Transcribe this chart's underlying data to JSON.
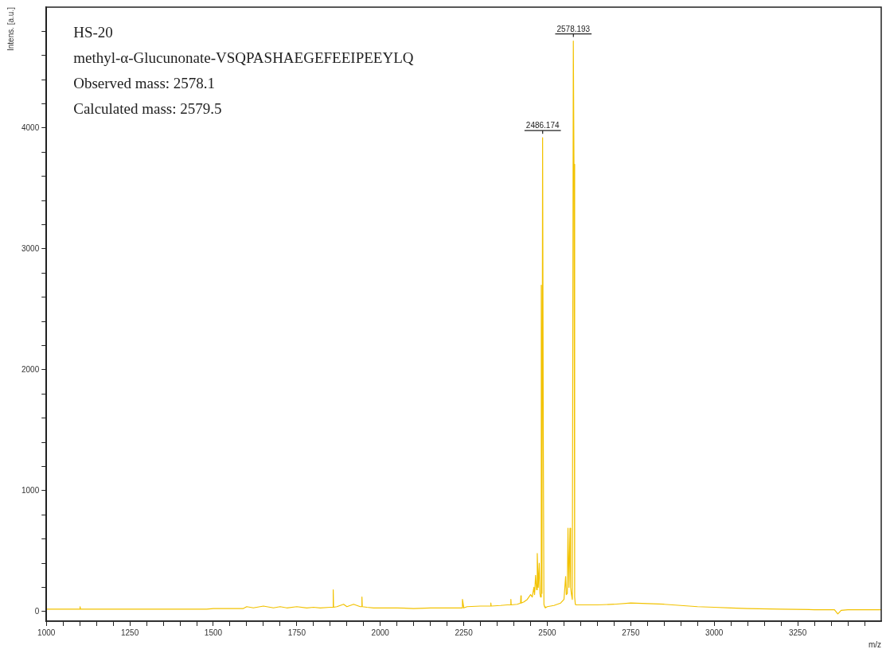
{
  "chart_data": {
    "type": "line",
    "xlabel": "m/z",
    "ylabel": "Intens. [a.u.]",
    "annotations": [
      "HS-20",
      "methyl-α-Glucunonate-VSQPASHAEGEFEEIPEEYLQ",
      "Observed mass: 2578.1",
      "Calculated mass: 2579.5",
      {
        "text": "2486.174",
        "x": 2486.174,
        "y": 3920
      },
      {
        "text": "2578.193",
        "x": 2578.193,
        "y": 4720
      }
    ],
    "xlim": [
      1000,
      3500
    ],
    "ylim": [
      -80,
      5000
    ],
    "xticks": [
      1000,
      {
        "value": 1050,
        "label": null
      },
      {
        "value": 1100,
        "label": null
      },
      {
        "value": 1150,
        "label": null
      },
      {
        "value": 1200,
        "label": null
      },
      1250,
      {
        "value": 1300,
        "label": null
      },
      {
        "value": 1350,
        "label": null
      },
      {
        "value": 1400,
        "label": null
      },
      {
        "value": 1450,
        "label": null
      },
      1500,
      {
        "value": 1550,
        "label": null
      },
      {
        "value": 1600,
        "label": null
      },
      {
        "value": 1650,
        "label": null
      },
      {
        "value": 1700,
        "label": null
      },
      1750,
      {
        "value": 1800,
        "label": null
      },
      {
        "value": 1850,
        "label": null
      },
      {
        "value": 1900,
        "label": null
      },
      {
        "value": 1950,
        "label": null
      },
      2000,
      {
        "value": 2050,
        "label": null
      },
      {
        "value": 2100,
        "label": null
      },
      {
        "value": 2150,
        "label": null
      },
      {
        "value": 2200,
        "label": null
      },
      2250,
      {
        "value": 2300,
        "label": null
      },
      {
        "value": 2350,
        "label": null
      },
      {
        "value": 2400,
        "label": null
      },
      {
        "value": 2450,
        "label": null
      },
      2500,
      {
        "value": 2550,
        "label": null
      },
      {
        "value": 2600,
        "label": null
      },
      {
        "value": 2650,
        "label": null
      },
      {
        "value": 2700,
        "label": null
      },
      2750,
      {
        "value": 2800,
        "label": null
      },
      {
        "value": 2850,
        "label": null
      },
      {
        "value": 2900,
        "label": null
      },
      {
        "value": 2950,
        "label": null
      },
      3000,
      {
        "value": 3050,
        "label": null
      },
      {
        "value": 3100,
        "label": null
      },
      {
        "value": 3150,
        "label": null
      },
      {
        "value": 3200,
        "label": null
      },
      3250,
      {
        "value": 3300,
        "label": null
      },
      {
        "value": 3350,
        "label": null
      },
      {
        "value": 3400,
        "label": null
      },
      {
        "value": 3450,
        "label": null
      }
    ],
    "yticks": [
      0,
      {
        "value": 200,
        "label": null
      },
      {
        "value": 400,
        "label": null
      },
      {
        "value": 600,
        "label": null
      },
      {
        "value": 800,
        "label": null
      },
      1000,
      {
        "value": 1200,
        "label": null
      },
      {
        "value": 1400,
        "label": null
      },
      {
        "value": 1600,
        "label": null
      },
      {
        "value": 1800,
        "label": null
      },
      2000,
      {
        "value": 2200,
        "label": null
      },
      {
        "value": 2400,
        "label": null
      },
      {
        "value": 2600,
        "label": null
      },
      {
        "value": 2800,
        "label": null
      },
      3000,
      {
        "value": 3200,
        "label": null
      },
      {
        "value": 3400,
        "label": null
      },
      {
        "value": 3600,
        "label": null
      },
      {
        "value": 3800,
        "label": null
      },
      4000,
      {
        "value": 4200,
        "label": null
      },
      {
        "value": 4400,
        "label": null
      },
      {
        "value": 4600,
        "label": null
      },
      {
        "value": 4800,
        "label": null
      }
    ],
    "grid": false,
    "legend": false,
    "marker": "none",
    "line_style": "solid",
    "series": [
      {
        "color": "#f2c200",
        "x": [
          1000,
          1100,
          1101,
          1102,
          1200,
          1480,
          1500,
          1590,
          1600,
          1620,
          1650,
          1680,
          1700,
          1720,
          1750,
          1780,
          1800,
          1820,
          1850,
          1858,
          1859,
          1860,
          1870,
          1890,
          1900,
          1920,
          1940,
          1944,
          1945,
          1946,
          1960,
          1980,
          2000,
          2050,
          2100,
          2150,
          2200,
          2240,
          2245,
          2246,
          2250,
          2260,
          2300,
          2330,
          2331,
          2332,
          2360,
          2380,
          2390,
          2391,
          2392,
          2410,
          2420,
          2421,
          2422,
          2430,
          2440,
          2450,
          2455,
          2460,
          2462,
          2465,
          2468,
          2470,
          2473,
          2476,
          2478,
          2480,
          2482,
          2484,
          2486,
          2488,
          2490,
          2492,
          2494,
          2500,
          2510,
          2520,
          2530,
          2540,
          2550,
          2555,
          2557,
          2560,
          2562,
          2565,
          2568,
          2570,
          2572,
          2575,
          2578,
          2580,
          2582,
          2584,
          2586,
          2590,
          2600,
          2650,
          2700,
          2750,
          2800,
          2850,
          2900,
          2950,
          3000,
          3050,
          3100,
          3200,
          3300,
          3360,
          3370,
          3380,
          3400,
          3450,
          3500
        ],
        "values": [
          20,
          20,
          40,
          20,
          20,
          20,
          25,
          25,
          40,
          30,
          45,
          30,
          40,
          30,
          40,
          30,
          35,
          30,
          35,
          35,
          180,
          35,
          40,
          60,
          40,
          60,
          40,
          40,
          120,
          40,
          35,
          30,
          30,
          30,
          25,
          30,
          30,
          30,
          30,
          100,
          30,
          40,
          45,
          45,
          70,
          45,
          50,
          55,
          55,
          100,
          55,
          60,
          70,
          130,
          70,
          80,
          100,
          140,
          120,
          200,
          140,
          300,
          180,
          480,
          200,
          400,
          150,
          120,
          2700,
          150,
          3920,
          1500,
          60,
          40,
          30,
          40,
          45,
          50,
          60,
          70,
          100,
          290,
          140,
          150,
          690,
          200,
          690,
          200,
          150,
          100,
          4720,
          3700,
          120,
          60,
          55,
          55,
          55,
          55,
          60,
          70,
          65,
          60,
          50,
          40,
          35,
          30,
          25,
          20,
          15,
          15,
          -20,
          10,
          15,
          15,
          15
        ]
      }
    ]
  }
}
